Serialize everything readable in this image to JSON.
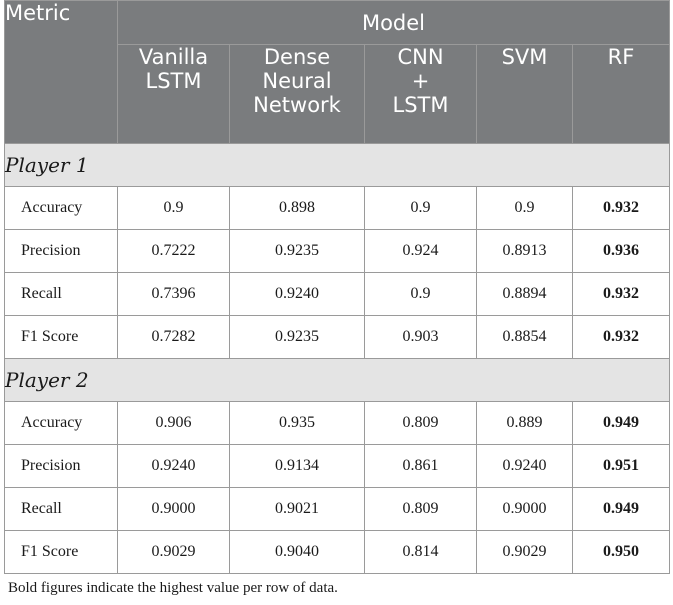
{
  "header": {
    "metric_label": "Metric",
    "model_label": "Model",
    "models": [
      [
        "Vanilla",
        "LSTM"
      ],
      [
        "Dense",
        "Neural",
        "Network"
      ],
      [
        "CNN",
        "+",
        "LSTM"
      ],
      [
        "SVM"
      ],
      [
        "RF"
      ]
    ]
  },
  "sections": [
    {
      "label": "Player 1",
      "rows": [
        {
          "metric": "Accuracy",
          "values": [
            "0.9",
            "0.898",
            "0.9",
            "0.9",
            "0.932"
          ]
        },
        {
          "metric": "Precision",
          "values": [
            "0.7222",
            "0.9235",
            "0.924",
            "0.8913",
            "0.936"
          ]
        },
        {
          "metric": "Recall",
          "values": [
            "0.7396",
            "0.9240",
            "0.9",
            "0.8894",
            "0.932"
          ]
        },
        {
          "metric": "F1 Score",
          "values": [
            "0.7282",
            "0.9235",
            "0.903",
            "0.8854",
            "0.932"
          ]
        }
      ]
    },
    {
      "label": "Player 2",
      "rows": [
        {
          "metric": "Accuracy",
          "values": [
            "0.906",
            "0.935",
            "0.809",
            "0.889",
            "0.949"
          ]
        },
        {
          "metric": "Precision",
          "values": [
            "0.9240",
            "0.9134",
            "0.861",
            "0.9240",
            "0.951"
          ]
        },
        {
          "metric": "Recall",
          "values": [
            "0.9000",
            "0.9021",
            "0.809",
            "0.9000",
            "0.949"
          ]
        },
        {
          "metric": "F1 Score",
          "values": [
            "0.9029",
            "0.9040",
            "0.814",
            "0.9029",
            "0.950"
          ]
        }
      ]
    }
  ],
  "bold_column_index": 4,
  "footnote": "Bold figures indicate the highest value per row of data."
}
